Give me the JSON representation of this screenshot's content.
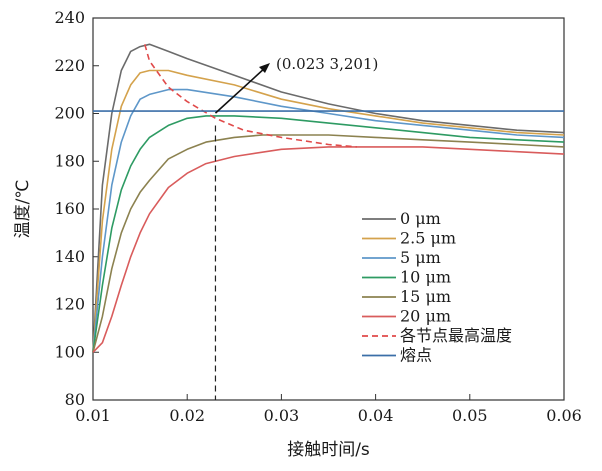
{
  "chart_data": {
    "type": "line",
    "title": "",
    "xlabel": "接触时间/s",
    "ylabel": "温度/℃",
    "xlim": [
      0.01,
      0.06
    ],
    "ylim": [
      80,
      240
    ],
    "xticks": [
      "0.01",
      "0.02",
      "0.03",
      "0.04",
      "0.05",
      "0.06"
    ],
    "yticks": [
      "80",
      "100",
      "120",
      "140",
      "160",
      "180",
      "200",
      "220",
      "240"
    ],
    "grid": false,
    "legend_position": "lower-right",
    "series": [
      {
        "name": "0 μm",
        "color": "#6b6b6b",
        "style": "solid",
        "x": [
          0.01,
          0.011,
          0.012,
          0.013,
          0.014,
          0.015,
          0.016,
          0.018,
          0.02,
          0.025,
          0.03,
          0.035,
          0.04,
          0.045,
          0.05,
          0.055,
          0.06
        ],
        "y": [
          100,
          170,
          200,
          218,
          226,
          228,
          229,
          226,
          223,
          216,
          209,
          204,
          200,
          197,
          195,
          193,
          192
        ]
      },
      {
        "name": "2.5 μm",
        "color": "#d4a24c",
        "style": "solid",
        "x": [
          0.01,
          0.011,
          0.012,
          0.013,
          0.014,
          0.015,
          0.016,
          0.018,
          0.02,
          0.025,
          0.03,
          0.035,
          0.04,
          0.045,
          0.05,
          0.055,
          0.06
        ],
        "y": [
          100,
          155,
          185,
          203,
          212,
          217,
          218,
          218,
          216,
          212,
          206,
          202,
          199,
          196,
          194,
          192,
          191
        ]
      },
      {
        "name": "5 μm",
        "color": "#5e97c9",
        "style": "solid",
        "x": [
          0.01,
          0.011,
          0.012,
          0.013,
          0.014,
          0.015,
          0.016,
          0.018,
          0.02,
          0.025,
          0.03,
          0.035,
          0.04,
          0.045,
          0.05,
          0.055,
          0.06
        ],
        "y": [
          100,
          140,
          170,
          188,
          199,
          206,
          208,
          210,
          210,
          207,
          203,
          200,
          197,
          195,
          193,
          191,
          190
        ]
      },
      {
        "name": "10 μm",
        "color": "#2e9b63",
        "style": "solid",
        "x": [
          0.01,
          0.011,
          0.012,
          0.013,
          0.014,
          0.015,
          0.016,
          0.018,
          0.02,
          0.022,
          0.025,
          0.03,
          0.035,
          0.04,
          0.045,
          0.05,
          0.055,
          0.06
        ],
        "y": [
          100,
          128,
          152,
          168,
          178,
          185,
          190,
          195,
          198,
          199,
          199,
          198,
          196,
          194,
          192,
          190,
          189,
          188
        ]
      },
      {
        "name": "15 μm",
        "color": "#8c8250",
        "style": "solid",
        "x": [
          0.01,
          0.011,
          0.012,
          0.013,
          0.014,
          0.015,
          0.016,
          0.018,
          0.02,
          0.022,
          0.025,
          0.028,
          0.03,
          0.035,
          0.04,
          0.045,
          0.05,
          0.055,
          0.06
        ],
        "y": [
          100,
          115,
          135,
          150,
          160,
          167,
          172,
          181,
          185,
          188,
          190,
          191,
          191,
          191,
          190,
          189,
          188,
          187,
          186
        ]
      },
      {
        "name": "20 μm",
        "color": "#d95c5c",
        "style": "solid",
        "x": [
          0.01,
          0.011,
          0.012,
          0.013,
          0.014,
          0.015,
          0.016,
          0.018,
          0.02,
          0.022,
          0.025,
          0.03,
          0.035,
          0.04,
          0.045,
          0.05,
          0.055,
          0.06
        ],
        "y": [
          100,
          104,
          115,
          128,
          140,
          150,
          158,
          169,
          175,
          179,
          182,
          185,
          186,
          186,
          186,
          185,
          184,
          183
        ]
      },
      {
        "name": "各节点最高温度",
        "color": "#e04a4a",
        "style": "dashed",
        "x": [
          0.0155,
          0.016,
          0.018,
          0.02,
          0.023,
          0.026,
          0.03,
          0.035,
          0.038
        ],
        "y": [
          229,
          222,
          211,
          205,
          198,
          193,
          190,
          187,
          186
        ]
      },
      {
        "name": "熔点",
        "color": "#3b6fa8",
        "style": "solid",
        "x": [
          0.01,
          0.06
        ],
        "y": [
          201,
          201
        ]
      }
    ],
    "annotations": [
      {
        "text": "(0.023 3,201)",
        "x": 0.023,
        "y": 201,
        "guide_to_y": 80
      }
    ]
  }
}
